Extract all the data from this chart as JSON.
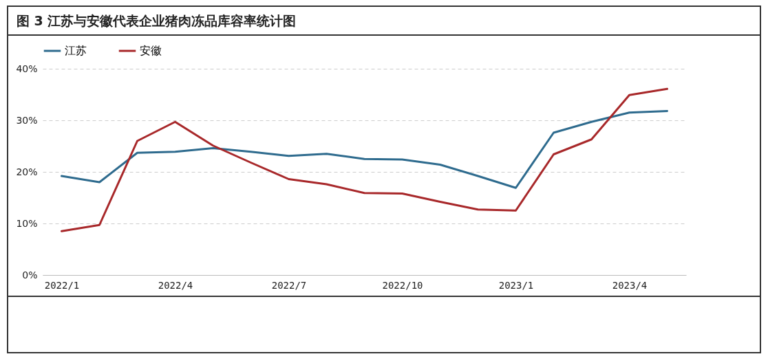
{
  "chart_data": {
    "type": "line",
    "title": "图 3 江苏与安徽代表企业猪肉冻品库容率统计图",
    "categories": [
      "2022/1",
      null,
      null,
      "2022/4",
      null,
      null,
      "2022/7",
      null,
      null,
      "2022/10",
      null,
      null,
      "2023/1",
      null,
      null,
      "2023/4",
      null
    ],
    "series": [
      {
        "name": "江苏",
        "color": "#2e6b8e",
        "values": [
          19.2,
          18.0,
          23.7,
          23.9,
          24.6,
          23.9,
          23.1,
          23.5,
          22.5,
          22.4,
          21.4,
          19.2,
          16.9,
          27.6,
          29.7,
          31.5,
          31.8
        ]
      },
      {
        "name": "安徽",
        "color": "#a8282a",
        "values": [
          8.5,
          9.7,
          26.0,
          29.7,
          25.1,
          21.8,
          18.6,
          17.6,
          15.9,
          15.8,
          14.2,
          12.7,
          12.5,
          23.4,
          26.3,
          34.9,
          36.1
        ]
      }
    ],
    "ylim": [
      0,
      40
    ],
    "yticks": [
      {
        "value": 0,
        "label": "0%"
      },
      {
        "value": 10,
        "label": "10%"
      },
      {
        "value": 20,
        "label": "20%"
      },
      {
        "value": 30,
        "label": "30%"
      },
      {
        "value": 40,
        "label": "40%"
      }
    ],
    "grid": "y",
    "legend": "top",
    "marker": "none",
    "line_style": "solid"
  }
}
